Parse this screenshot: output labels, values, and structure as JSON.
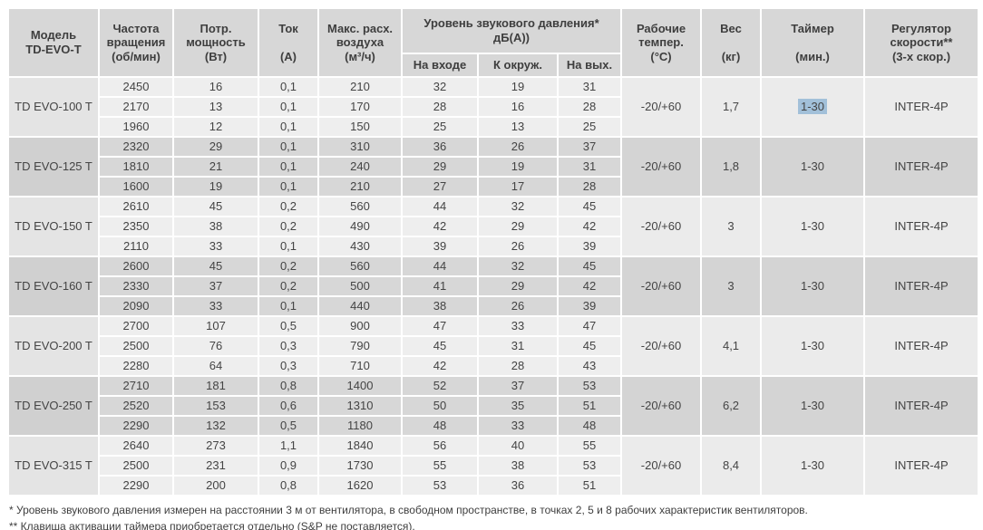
{
  "colors": {
    "header_bg": "#d7d7d7",
    "light_group_bg": "#eeeeee",
    "gray_group_bg": "#d7d7d7",
    "text": "#444444",
    "selection_highlight": "#a2c0d9"
  },
  "table": {
    "headers": {
      "model": "Модель\nTD-EVO-T",
      "speed": "Частота\nвращения\n(об/мин)",
      "power": "Потр.\nмощность\n(Вт)",
      "current": "Ток\n\n(А)",
      "airflow": "Макс. расх.\nвоздуха\n(м³/ч)",
      "sound_group": "Уровень звукового давления*\nдБ(А))",
      "sound_inlet": "На входе",
      "sound_ambient": "К окруж.",
      "sound_outlet": "На вых.",
      "temp": "Рабочие\nтемпер.\n(°С)",
      "weight": "Вес\n\n(кг)",
      "timer": "Таймер\n\n(мин.)",
      "regulator": "Регулятор\nскорости**\n(3-х скор.)"
    },
    "groups": [
      {
        "model": "TD EVO-100 T",
        "shade": "light",
        "rows": [
          [
            "2450",
            "16",
            "0,1",
            "210",
            "32",
            "19",
            "31"
          ],
          [
            "2170",
            "13",
            "0,1",
            "170",
            "28",
            "16",
            "28"
          ],
          [
            "1960",
            "12",
            "0,1",
            "150",
            "25",
            "13",
            "25"
          ]
        ],
        "temp": "-20/+60",
        "weight": "1,7",
        "timer": "1-30",
        "timer_highlighted": true,
        "regulator": "INTER-4P"
      },
      {
        "model": "TD EVO-125 T",
        "shade": "gray",
        "rows": [
          [
            "2320",
            "29",
            "0,1",
            "310",
            "36",
            "26",
            "37"
          ],
          [
            "1810",
            "21",
            "0,1",
            "240",
            "29",
            "19",
            "31"
          ],
          [
            "1600",
            "19",
            "0,1",
            "210",
            "27",
            "17",
            "28"
          ]
        ],
        "temp": "-20/+60",
        "weight": "1,8",
        "timer": "1-30",
        "timer_highlighted": false,
        "regulator": "INTER-4P"
      },
      {
        "model": "TD EVO-150 T",
        "shade": "light",
        "rows": [
          [
            "2610",
            "45",
            "0,2",
            "560",
            "44",
            "32",
            "45"
          ],
          [
            "2350",
            "38",
            "0,2",
            "490",
            "42",
            "29",
            "42"
          ],
          [
            "2110",
            "33",
            "0,1",
            "430",
            "39",
            "26",
            "39"
          ]
        ],
        "temp": "-20/+60",
        "weight": "3",
        "timer": "1-30",
        "timer_highlighted": false,
        "regulator": "INTER-4P"
      },
      {
        "model": "TD EVO-160 T",
        "shade": "gray",
        "rows": [
          [
            "2600",
            "45",
            "0,2",
            "560",
            "44",
            "32",
            "45"
          ],
          [
            "2330",
            "37",
            "0,2",
            "500",
            "41",
            "29",
            "42"
          ],
          [
            "2090",
            "33",
            "0,1",
            "440",
            "38",
            "26",
            "39"
          ]
        ],
        "temp": "-20/+60",
        "weight": "3",
        "timer": "1-30",
        "timer_highlighted": false,
        "regulator": "INTER-4P"
      },
      {
        "model": "TD EVO-200 T",
        "shade": "light",
        "rows": [
          [
            "2700",
            "107",
            "0,5",
            "900",
            "47",
            "33",
            "47"
          ],
          [
            "2500",
            "76",
            "0,3",
            "790",
            "45",
            "31",
            "45"
          ],
          [
            "2280",
            "64",
            "0,3",
            "710",
            "42",
            "28",
            "43"
          ]
        ],
        "temp": "-20/+60",
        "weight": "4,1",
        "timer": "1-30",
        "timer_highlighted": false,
        "regulator": "INTER-4P"
      },
      {
        "model": "TD EVO-250 T",
        "shade": "gray",
        "rows": [
          [
            "2710",
            "181",
            "0,8",
            "1400",
            "52",
            "37",
            "53"
          ],
          [
            "2520",
            "153",
            "0,6",
            "1310",
            "50",
            "35",
            "51"
          ],
          [
            "2290",
            "132",
            "0,5",
            "1180",
            "48",
            "33",
            "48"
          ]
        ],
        "temp": "-20/+60",
        "weight": "6,2",
        "timer": "1-30",
        "timer_highlighted": false,
        "regulator": "INTER-4P"
      },
      {
        "model": "TD EVO-315 T",
        "shade": "light",
        "rows": [
          [
            "2640",
            "273",
            "1,1",
            "1840",
            "56",
            "40",
            "55"
          ],
          [
            "2500",
            "231",
            "0,9",
            "1730",
            "55",
            "38",
            "53"
          ],
          [
            "2290",
            "200",
            "0,8",
            "1620",
            "53",
            "36",
            "51"
          ]
        ],
        "temp": "-20/+60",
        "weight": "8,4",
        "timer": "1-30",
        "timer_highlighted": false,
        "regulator": "INTER-4P"
      }
    ]
  },
  "footnotes": [
    "* Уровень звукового давления измерен на расстоянии 3 м от вентилятора, в свободном пространстве, в точках 2, 5 и 8 рабочих характеристик вентиляторов.",
    "** Клавиша активации таймера приобретается отдельно (S&P не поставляется)."
  ]
}
